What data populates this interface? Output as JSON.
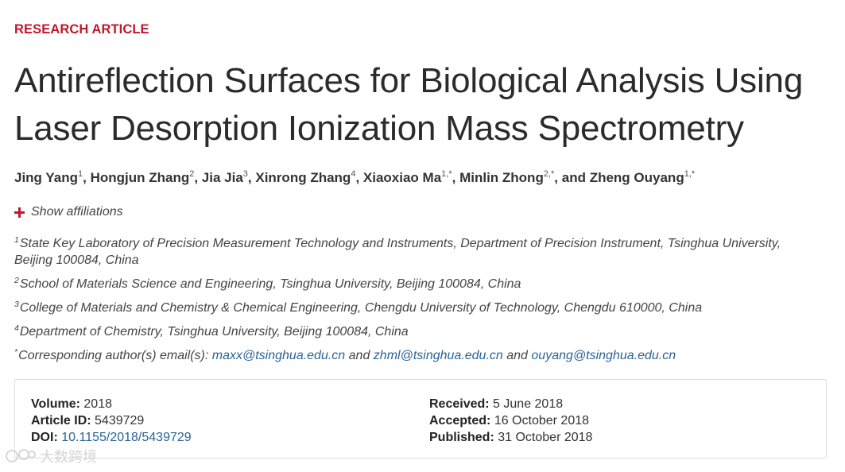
{
  "header": {
    "article_type": "RESEARCH ARTICLE",
    "title": "Antireflection Surfaces for Biological Analysis Using Laser Desorption Ionization Mass Spectrometry"
  },
  "authors": [
    {
      "name": "Jing Yang",
      "sup": "1",
      "sep": ", "
    },
    {
      "name": "Hongjun Zhang",
      "sup": "2",
      "sep": ", "
    },
    {
      "name": "Jia Jia",
      "sup": "3",
      "sep": ", "
    },
    {
      "name": "Xinrong Zhang",
      "sup": "4",
      "sep": ", "
    },
    {
      "name": "Xiaoxiao Ma",
      "sup": "1,*",
      "sep": ", "
    },
    {
      "name": "Minlin Zhong",
      "sup": "2,*",
      "sep": ", and "
    },
    {
      "name": "Zheng Ouyang",
      "sup": "1,*",
      "sep": ""
    }
  ],
  "show_affiliations_label": "Show affiliations",
  "affiliations": [
    {
      "sup": "1",
      "text": "State Key Laboratory of Precision Measurement Technology and Instruments, Department of Precision Instrument, Tsinghua University, Beijing 100084, China"
    },
    {
      "sup": "2",
      "text": "School of Materials Science and Engineering, Tsinghua University, Beijing 100084, China"
    },
    {
      "sup": "3",
      "text": "College of Materials and Chemistry & Chemical Engineering, Chengdu University of Technology, Chengdu 610000, China"
    },
    {
      "sup": "4",
      "text": "Department of Chemistry, Tsinghua University, Beijing 100084, China"
    }
  ],
  "corresponding": {
    "sup": "*",
    "prefix": "Corresponding author(s) email(s): ",
    "emails": [
      "maxx@tsinghua.edu.cn",
      "zhml@tsinghua.edu.cn",
      "ouyang@tsinghua.edu.cn"
    ],
    "and_word": " and "
  },
  "meta": {
    "volume_label": "Volume:",
    "volume_value": "2018",
    "article_id_label": "Article ID:",
    "article_id_value": "5439729",
    "doi_label": "DOI:",
    "doi_value": "10.1155/2018/5439729",
    "received_label": "Received:",
    "received_value": "5 June 2018",
    "accepted_label": "Accepted:",
    "accepted_value": "16 October 2018",
    "published_label": "Published:",
    "published_value": "31 October 2018"
  },
  "watermark": {
    "text": "大数跨境"
  },
  "colors": {
    "accent_red": "#c0182b",
    "link_blue": "#2a6496"
  }
}
